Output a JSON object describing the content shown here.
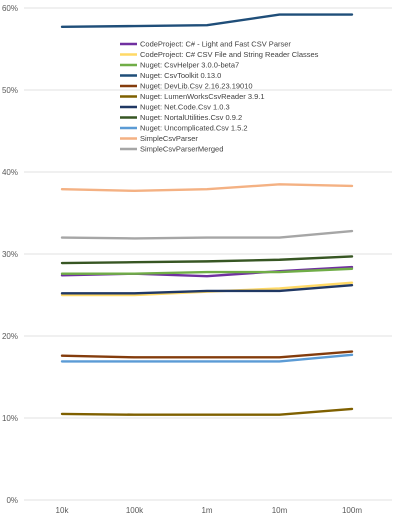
{
  "chart_data": {
    "type": "line",
    "title": "",
    "xlabel": "",
    "ylabel": "",
    "categories": [
      "10k",
      "100k",
      "1m",
      "10m",
      "100m"
    ],
    "ylim": [
      0,
      60
    ],
    "yticks": [
      0,
      10,
      20,
      30,
      40,
      50,
      60
    ],
    "ytick_labels": [
      "0%",
      "10%",
      "20%",
      "30%",
      "40%",
      "50%",
      "60%"
    ],
    "grid": true,
    "legend_position": "top-center",
    "series": [
      {
        "name": "CodeProject: C# - Light and Fast CSV Parser",
        "color": "#7030a0",
        "values": [
          27.4,
          27.6,
          27.3,
          27.9,
          28.4
        ]
      },
      {
        "name": "CodeProject: C# CSV File and String Reader Classes",
        "color": "#ffd966",
        "values": [
          25.0,
          25.0,
          25.4,
          25.8,
          26.5
        ]
      },
      {
        "name": "Nuget: CsvHelper 3.0.0-beta7",
        "color": "#70ad47",
        "values": [
          27.6,
          27.6,
          27.8,
          27.8,
          28.2
        ]
      },
      {
        "name": "Nuget: CsvToolkit 0.13.0",
        "color": "#1f4e79",
        "values": [
          57.7,
          57.8,
          57.9,
          59.2,
          59.2
        ]
      },
      {
        "name": "Nuget: DevLib.Csv 2.16.23.19010",
        "color": "#843c0c",
        "values": [
          17.6,
          17.4,
          17.4,
          17.4,
          18.1
        ]
      },
      {
        "name": "Nuget: LumenWorksCsvReader 3.9.1",
        "color": "#7f6000",
        "values": [
          10.5,
          10.4,
          10.4,
          10.4,
          11.1
        ]
      },
      {
        "name": "Nuget: Net.Code.Csv 1.0.3",
        "color": "#203864",
        "values": [
          25.2,
          25.2,
          25.5,
          25.5,
          26.2
        ]
      },
      {
        "name": "Nuget: NortalUtilities.Csv 0.9.2",
        "color": "#375623",
        "values": [
          28.9,
          29.0,
          29.1,
          29.3,
          29.7
        ]
      },
      {
        "name": "Nuget: Uncomplicated.Csv 1.5.2",
        "color": "#5b9bd5",
        "values": [
          16.9,
          16.9,
          16.9,
          16.9,
          17.7
        ]
      },
      {
        "name": "SimpleCsvParser",
        "color": "#f4b183",
        "values": [
          37.9,
          37.7,
          37.9,
          38.5,
          38.3
        ]
      },
      {
        "name": "SimpleCsvParserMerged",
        "color": "#a6a6a6",
        "values": [
          32.0,
          31.9,
          32.0,
          32.0,
          32.8
        ]
      }
    ]
  }
}
